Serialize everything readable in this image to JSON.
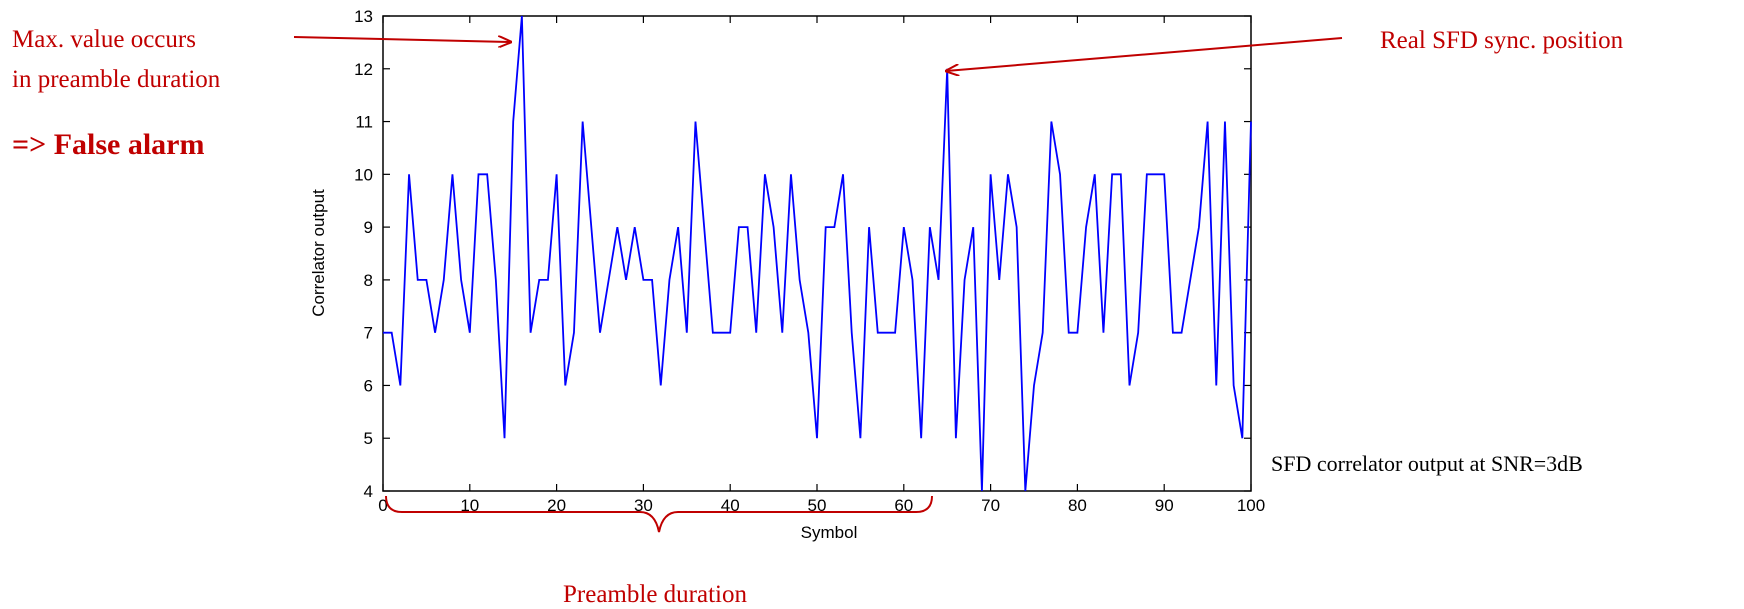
{
  "chart_data": {
    "type": "line",
    "title": "",
    "xlabel": "Symbol",
    "ylabel": "Correlator output",
    "xlim": [
      0,
      100
    ],
    "ylim": [
      4,
      13
    ],
    "xticks": [
      0,
      10,
      20,
      30,
      40,
      50,
      60,
      70,
      80,
      90,
      100
    ],
    "yticks": [
      4,
      5,
      6,
      7,
      8,
      9,
      10,
      11,
      12,
      13
    ],
    "grid": false,
    "series": [
      {
        "color": "#0000ff",
        "x": [
          0,
          1,
          2,
          3,
          4,
          5,
          6,
          7,
          8,
          9,
          10,
          11,
          12,
          13,
          14,
          15,
          16,
          17,
          18,
          19,
          20,
          21,
          22,
          23,
          24,
          25,
          26,
          27,
          28,
          29,
          30,
          31,
          32,
          33,
          34,
          35,
          36,
          37,
          38,
          39,
          40,
          41,
          42,
          43,
          44,
          45,
          46,
          47,
          48,
          49,
          50,
          51,
          52,
          53,
          54,
          55,
          56,
          57,
          58,
          59,
          60,
          61,
          62,
          63,
          64,
          65,
          66,
          67,
          68,
          69,
          70,
          71,
          72,
          73,
          74,
          75,
          76,
          77,
          78,
          79,
          80,
          81,
          82,
          83,
          84,
          85,
          86,
          87,
          88,
          89,
          90,
          91,
          92,
          93,
          94,
          95,
          96,
          97,
          98,
          99,
          100
        ],
        "y": [
          7,
          7,
          6,
          10,
          8,
          8,
          7,
          8,
          10,
          8,
          7,
          10,
          10,
          8,
          5,
          11,
          13,
          7,
          8,
          8,
          10,
          6,
          7,
          11,
          9,
          7,
          8,
          9,
          8,
          9,
          8,
          8,
          6,
          8,
          9,
          7,
          11,
          9,
          7,
          7,
          7,
          9,
          9,
          7,
          10,
          9,
          7,
          10,
          8,
          7,
          5,
          9,
          9,
          10,
          7,
          5,
          9,
          7,
          7,
          7,
          9,
          8,
          5,
          9,
          8,
          12,
          5,
          8,
          9,
          4,
          10,
          8,
          10,
          9,
          4,
          6,
          7,
          11,
          10,
          7,
          7,
          9,
          10,
          7,
          10,
          10,
          6,
          7,
          10,
          10,
          10,
          7,
          7,
          8,
          9,
          11,
          6,
          11,
          6,
          5,
          11
        ]
      }
    ],
    "annotations": {
      "max_value_line1": "Max. value occurs",
      "max_value_line2": "in preamble duration",
      "false_alarm": "=> False alarm",
      "real_sfd": "Real SFD sync. position",
      "preamble_duration": "Preamble duration",
      "caption": "SFD correlator output at SNR=3dB"
    },
    "annotation_color": "#c00000"
  }
}
